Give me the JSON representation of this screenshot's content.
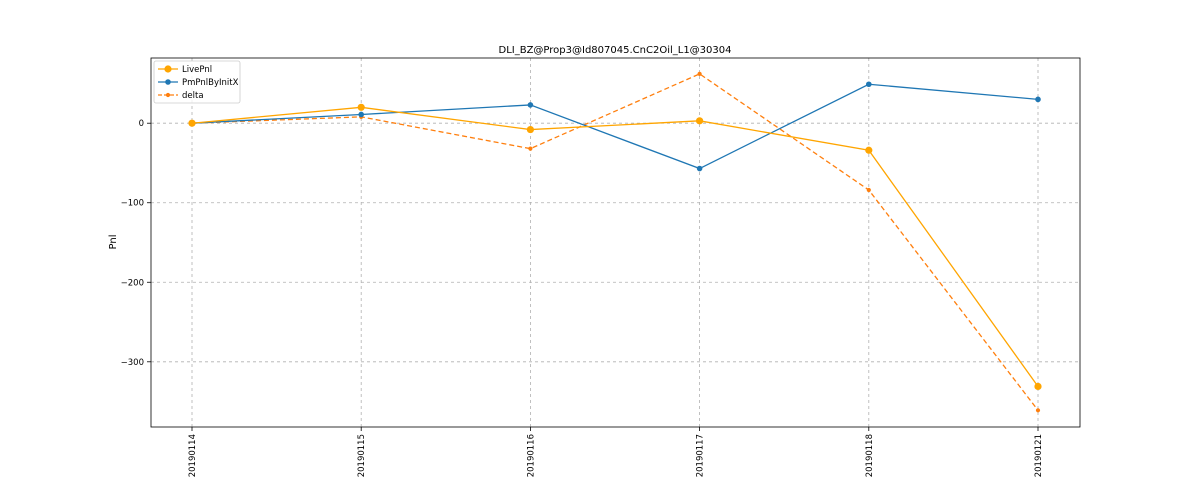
{
  "chart_data": {
    "type": "line",
    "title": "DLI_BZ@Prop3@Id807045.CnC2Oil_L1@30304",
    "xlabel": "",
    "ylabel": "Pnl",
    "categories": [
      "20190114",
      "20190115",
      "20190116",
      "20190117",
      "20190118",
      "20190121"
    ],
    "ylim": [
      -382,
      82
    ],
    "yticks": [
      0,
      -100,
      -200,
      -300
    ],
    "ytick_labels": [
      "0",
      "−100",
      "−200",
      "−300"
    ],
    "grid": true,
    "legend_position": "top-left",
    "series": [
      {
        "name": "LivePnl",
        "values": [
          0,
          20,
          -8,
          3,
          -34,
          -331
        ],
        "color": "#FFA500",
        "style": "solid",
        "marker_size": "large"
      },
      {
        "name": "PmPnlByInitX",
        "values": [
          0,
          11,
          23,
          -57,
          49,
          30
        ],
        "color": "#1f77b4",
        "style": "solid",
        "marker_size": "medium"
      },
      {
        "name": "delta",
        "values": [
          0,
          8,
          -32,
          62,
          -84,
          -361
        ],
        "color": "#ff7f0e",
        "style": "dashed",
        "marker_size": "small"
      }
    ]
  }
}
